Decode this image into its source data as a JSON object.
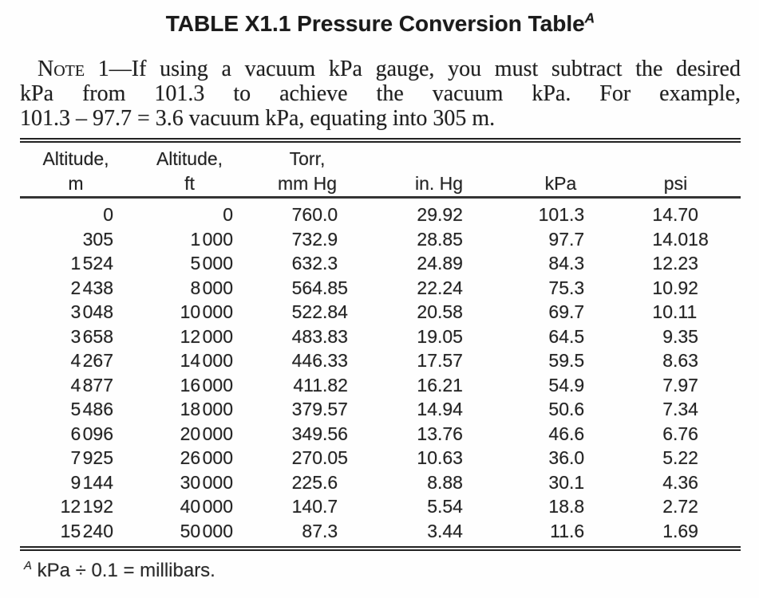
{
  "title": {
    "text": "TABLE X1.1 Pressure Conversion Table",
    "superscript": "A"
  },
  "note": {
    "label": "Note 1",
    "line1_rest": "—If using a vacuum kPa gauge, you must subtract the desired",
    "line2": "kPa from 101.3 to achieve the vacuum kPa. For example,",
    "line3": "101.3 – 97.7 = 3.6 vacuum kPa, equating into 305 m."
  },
  "table": {
    "columns": [
      {
        "line1": "Altitude,",
        "line2": "m"
      },
      {
        "line1": "Altitude,",
        "line2": "ft"
      },
      {
        "line1": "Torr,",
        "line2": "mm Hg"
      },
      {
        "line1": "",
        "line2": "in. Hg"
      },
      {
        "line1": "",
        "line2": "kPa"
      },
      {
        "line1": "",
        "line2": "psi"
      }
    ],
    "rows": [
      [
        "0",
        "0",
        "760.0",
        "29.92",
        "101.3",
        "14.70"
      ],
      [
        "305",
        "1 000",
        "732.9",
        "28.85",
        "97.7",
        "14.018"
      ],
      [
        "1 524",
        "5 000",
        "632.3",
        "24.89",
        "84.3",
        "12.23"
      ],
      [
        "2 438",
        "8 000",
        "564.85",
        "22.24",
        "75.3",
        "10.92"
      ],
      [
        "3 048",
        "10 000",
        "522.84",
        "20.58",
        "69.7",
        "10.11"
      ],
      [
        "3 658",
        "12 000",
        "483.83",
        "19.05",
        "64.5",
        "9.35"
      ],
      [
        "4 267",
        "14 000",
        "446.33",
        "17.57",
        "59.5",
        "8.63"
      ],
      [
        "4 877",
        "16 000",
        "411.82",
        "16.21",
        "54.9",
        "7.97"
      ],
      [
        "5 486",
        "18 000",
        "379.57",
        "14.94",
        "50.6",
        "7.34"
      ],
      [
        "6 096",
        "20 000",
        "349.56",
        "13.76",
        "46.6",
        "6.76"
      ],
      [
        "7 925",
        "26 000",
        "270.05",
        "10.63",
        "36.0",
        "5.22"
      ],
      [
        "9 144",
        "30 000",
        "225.6",
        "8.88",
        "30.1",
        "4.36"
      ],
      [
        "12 192",
        "40 000",
        "140.7",
        "5.54",
        "18.8",
        "2.72"
      ],
      [
        "15 240",
        "50 000",
        "87.3",
        "3.44",
        "11.6",
        "1.69"
      ]
    ]
  },
  "footnote": {
    "superscript": "A",
    "text": "kPa ÷ 0.1 = millibars."
  },
  "colors": {
    "background": "#fefefe",
    "text": "#1d1d1d",
    "rule": "#222222"
  }
}
